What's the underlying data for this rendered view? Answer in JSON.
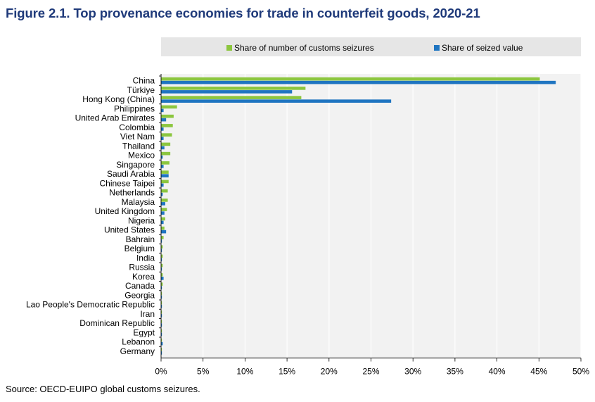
{
  "title": "Figure 2.1. Top provenance economies for trade in counterfeit goods, 2020-21",
  "source": "Source: OECD-EUIPO global customs seizures.",
  "chart_data": {
    "type": "bar",
    "orientation": "horizontal",
    "title": "Figure 2.1. Top provenance economies for trade in counterfeit goods, 2020-21",
    "xlabel": "",
    "ylabel": "",
    "xlim": [
      0,
      50
    ],
    "x_ticks": [
      "0%",
      "5%",
      "10%",
      "15%",
      "20%",
      "25%",
      "30%",
      "35%",
      "40%",
      "45%",
      "50%"
    ],
    "grid": "vertical",
    "legend_position": "top",
    "categories": [
      "China",
      "Türkiye",
      "Hong Kong (China)",
      "Philippines",
      "United Arab Emirates",
      "Colombia",
      "Viet Nam",
      "Thailand",
      "Mexico",
      "Singapore",
      "Saudi Arabia",
      "Chinese Taipei",
      "Netherlands",
      "Malaysia",
      "United Kingdom",
      "Nigeria",
      "United States",
      "Bahrain",
      "Belgium",
      "India",
      "Russia",
      "Korea",
      "Canada",
      "Georgia",
      "Lao People's Democratic Republic",
      "Iran",
      "Dominican Republic",
      "Egypt",
      "Lebanon",
      "Germany"
    ],
    "series": [
      {
        "name": "Share of number of customs seizures",
        "color": "#8cc63f",
        "values": [
          45.1,
          17.2,
          16.7,
          1.9,
          1.5,
          1.4,
          1.3,
          1.1,
          1.1,
          1.0,
          0.9,
          0.9,
          0.8,
          0.8,
          0.7,
          0.5,
          0.4,
          0.3,
          0.2,
          0.2,
          0.2,
          0.2,
          0.2,
          0.1,
          0.1,
          0.1,
          0.1,
          0.1,
          0.1,
          0.1
        ]
      },
      {
        "name": "Share of seized value",
        "color": "#1f75c1",
        "values": [
          47.0,
          15.6,
          27.4,
          0.3,
          0.6,
          0.3,
          0.3,
          0.4,
          0.2,
          0.3,
          0.9,
          0.3,
          0.2,
          0.5,
          0.4,
          0.3,
          0.6,
          0.1,
          0.1,
          0.1,
          0.1,
          0.3,
          0.1,
          0.1,
          0.1,
          0.1,
          0.1,
          0.1,
          0.2,
          0.1
        ]
      }
    ]
  }
}
